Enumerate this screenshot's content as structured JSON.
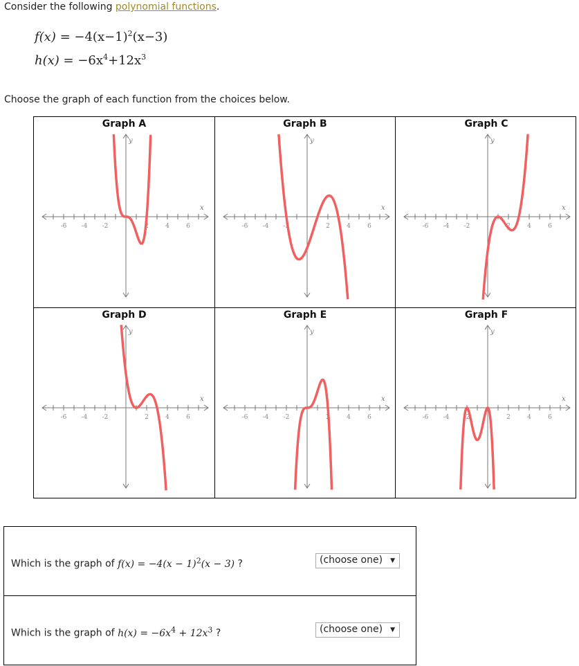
{
  "intro": {
    "prefix": "Consider the following ",
    "link": "polynomial functions",
    "suffix": "."
  },
  "functions": {
    "f": {
      "lhs": "f(x)",
      "rhs": "−4(x−1)",
      "exp": "2",
      "rhs2": "(x−3)"
    },
    "h": {
      "lhs": "h(x)",
      "rhs": "−6x",
      "exp1": "4",
      "mid": "+12x",
      "exp2": "3"
    }
  },
  "instruction": "Choose the graph of each function from the choices below.",
  "colors": {
    "curve": "#f06060",
    "axis": "#777777",
    "link": "#a08a2c"
  },
  "chart_data": [
    {
      "type": "line",
      "title": "Graph A",
      "xlabel": "x",
      "ylabel": "y",
      "xlim": [
        -8,
        8
      ],
      "ylim": [
        -8,
        8
      ],
      "xticks": [
        -6,
        -4,
        -2,
        2,
        4,
        6
      ],
      "curve": {
        "leading": 1.54,
        "roots": [
          [
            0,
            3
          ],
          [
            2,
            1
          ]
        ]
      }
    },
    {
      "type": "line",
      "title": "Graph B",
      "xlabel": "x",
      "ylabel": "y",
      "xlim": [
        -8,
        8
      ],
      "ylim": [
        -8,
        8
      ],
      "xticks": [
        -6,
        -4,
        -2,
        2,
        4,
        6
      ],
      "curve": {
        "leading": -0.5,
        "roots": [
          [
            -2,
            1
          ],
          [
            1,
            1
          ],
          [
            3,
            1
          ]
        ]
      }
    },
    {
      "type": "line",
      "title": "Graph C",
      "xlabel": "x",
      "ylabel": "y",
      "xlim": [
        -8,
        8
      ],
      "ylim": [
        -8,
        8
      ],
      "xticks": [
        -6,
        -4,
        -2,
        2,
        4,
        6
      ],
      "curve": {
        "leading": 1.1,
        "roots": [
          [
            1,
            2
          ],
          [
            3,
            1
          ]
        ]
      }
    },
    {
      "type": "line",
      "title": "Graph D",
      "xlabel": "x",
      "ylabel": "y",
      "xlim": [
        -8,
        8
      ],
      "ylim": [
        -8,
        8
      ],
      "xticks": [
        -6,
        -4,
        -2,
        2,
        4,
        6
      ],
      "curve": {
        "leading": -1.1,
        "roots": [
          [
            1,
            2
          ],
          [
            3,
            1
          ]
        ]
      }
    },
    {
      "type": "line",
      "title": "Graph E",
      "xlabel": "x",
      "ylabel": "y",
      "xlim": [
        -8,
        8
      ],
      "ylim": [
        -8,
        8
      ],
      "xticks": [
        -6,
        -4,
        -2,
        2,
        4,
        6
      ],
      "curve": {
        "leading": -1.6,
        "roots": [
          [
            0,
            3
          ],
          [
            2,
            1
          ]
        ]
      }
    },
    {
      "type": "line",
      "title": "Graph F",
      "xlabel": "x",
      "ylabel": "y",
      "xlim": [
        -8,
        8
      ],
      "ylim": [
        -8,
        8
      ],
      "xticks": [
        -6,
        -4,
        -2,
        2,
        4,
        6
      ],
      "curve": {
        "leading": -3.1,
        "roots": [
          [
            0,
            2
          ],
          [
            -2,
            2
          ]
        ]
      }
    }
  ],
  "questions": [
    {
      "prefix": "Which is the graph of ",
      "math": "f(x) = −4(x − 1)",
      "exp": "2",
      "math2": "(x − 3)",
      "suffix": " ?",
      "select": "(choose one)"
    },
    {
      "prefix": "Which is the graph of ",
      "math": "h(x) = −6x",
      "exp": "4",
      "math2": " + 12x",
      "exp2": "3",
      "suffix": " ?",
      "select": "(choose one)"
    }
  ]
}
